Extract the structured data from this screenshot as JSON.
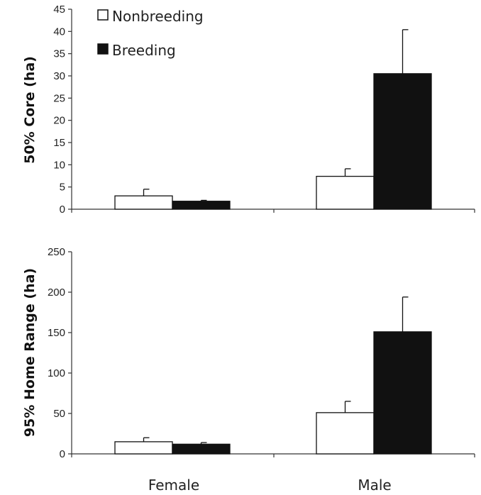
{
  "categories": [
    "Female",
    "Male"
  ],
  "legend": [
    {
      "name": "Nonbreeding",
      "color": "#ffffff"
    },
    {
      "name": "Breeding",
      "color": "#111111"
    }
  ],
  "chart_data": [
    {
      "type": "bar",
      "ylabel": "50% Core (ha)",
      "ylim": [
        0,
        45
      ],
      "yticks": [
        0,
        5,
        10,
        15,
        20,
        25,
        30,
        35,
        40,
        45
      ],
      "categories": [
        "Female",
        "Male"
      ],
      "series": [
        {
          "name": "Nonbreeding",
          "values": [
            3.0,
            7.4
          ],
          "errors": [
            1.5,
            1.7
          ]
        },
        {
          "name": "Breeding",
          "values": [
            1.8,
            30.5
          ],
          "errors": [
            0.2,
            9.9
          ]
        }
      ],
      "legend": "top-left",
      "grid": false
    },
    {
      "type": "bar",
      "ylabel": "95% Home Range (ha)",
      "ylim": [
        0,
        250
      ],
      "yticks": [
        0,
        50,
        100,
        150,
        200,
        250
      ],
      "categories": [
        "Female",
        "Male"
      ],
      "series": [
        {
          "name": "Nonbreeding",
          "values": [
            15,
            51
          ],
          "errors": [
            5,
            14
          ]
        },
        {
          "name": "Breeding",
          "values": [
            12,
            151
          ],
          "errors": [
            2,
            43
          ]
        }
      ],
      "grid": false
    }
  ]
}
